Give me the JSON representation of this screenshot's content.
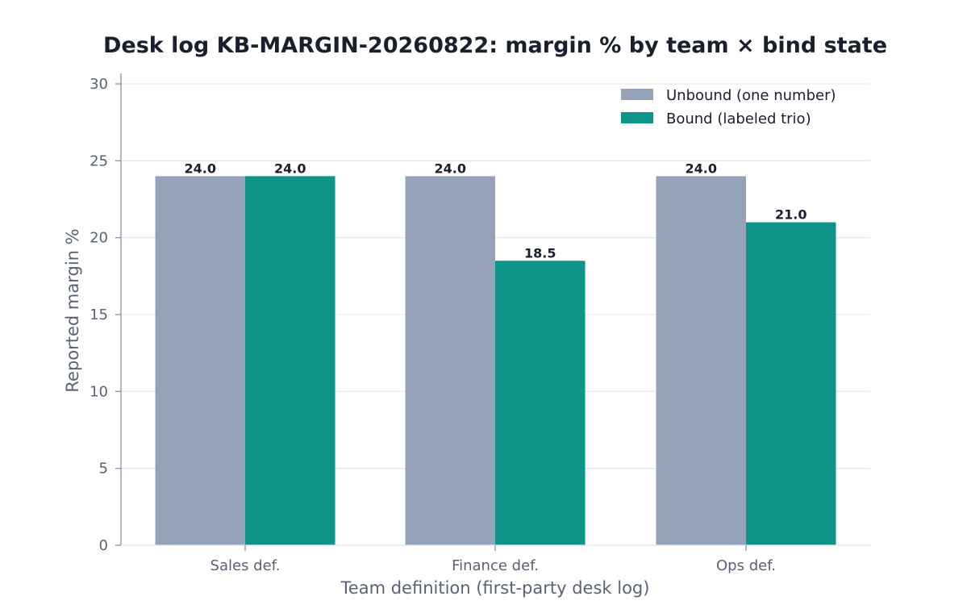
{
  "chart_data": {
    "type": "bar",
    "title": "Desk log KB-MARGIN-20260822: margin % by team × bind state",
    "xlabel": "Team definition (first-party desk log)",
    "ylabel": "Reported margin %",
    "ylim": [
      0,
      30
    ],
    "yticks": [
      0,
      5,
      10,
      15,
      20,
      25,
      30
    ],
    "categories": [
      "Sales def.",
      "Finance def.",
      "Ops def."
    ],
    "series": [
      {
        "name": "Unbound (one number)",
        "values": [
          24.0,
          24.0,
          24.0
        ],
        "color": "#95a3b9"
      },
      {
        "name": "Bound (labeled trio)",
        "values": [
          24.0,
          18.5,
          21.0
        ],
        "color": "#0e9488"
      }
    ],
    "value_labels": [
      [
        "24.0",
        "24.0",
        "24.0"
      ],
      [
        "24.0",
        "18.5",
        "21.0"
      ]
    ],
    "grid": "horizontal",
    "legend": "top-right"
  }
}
